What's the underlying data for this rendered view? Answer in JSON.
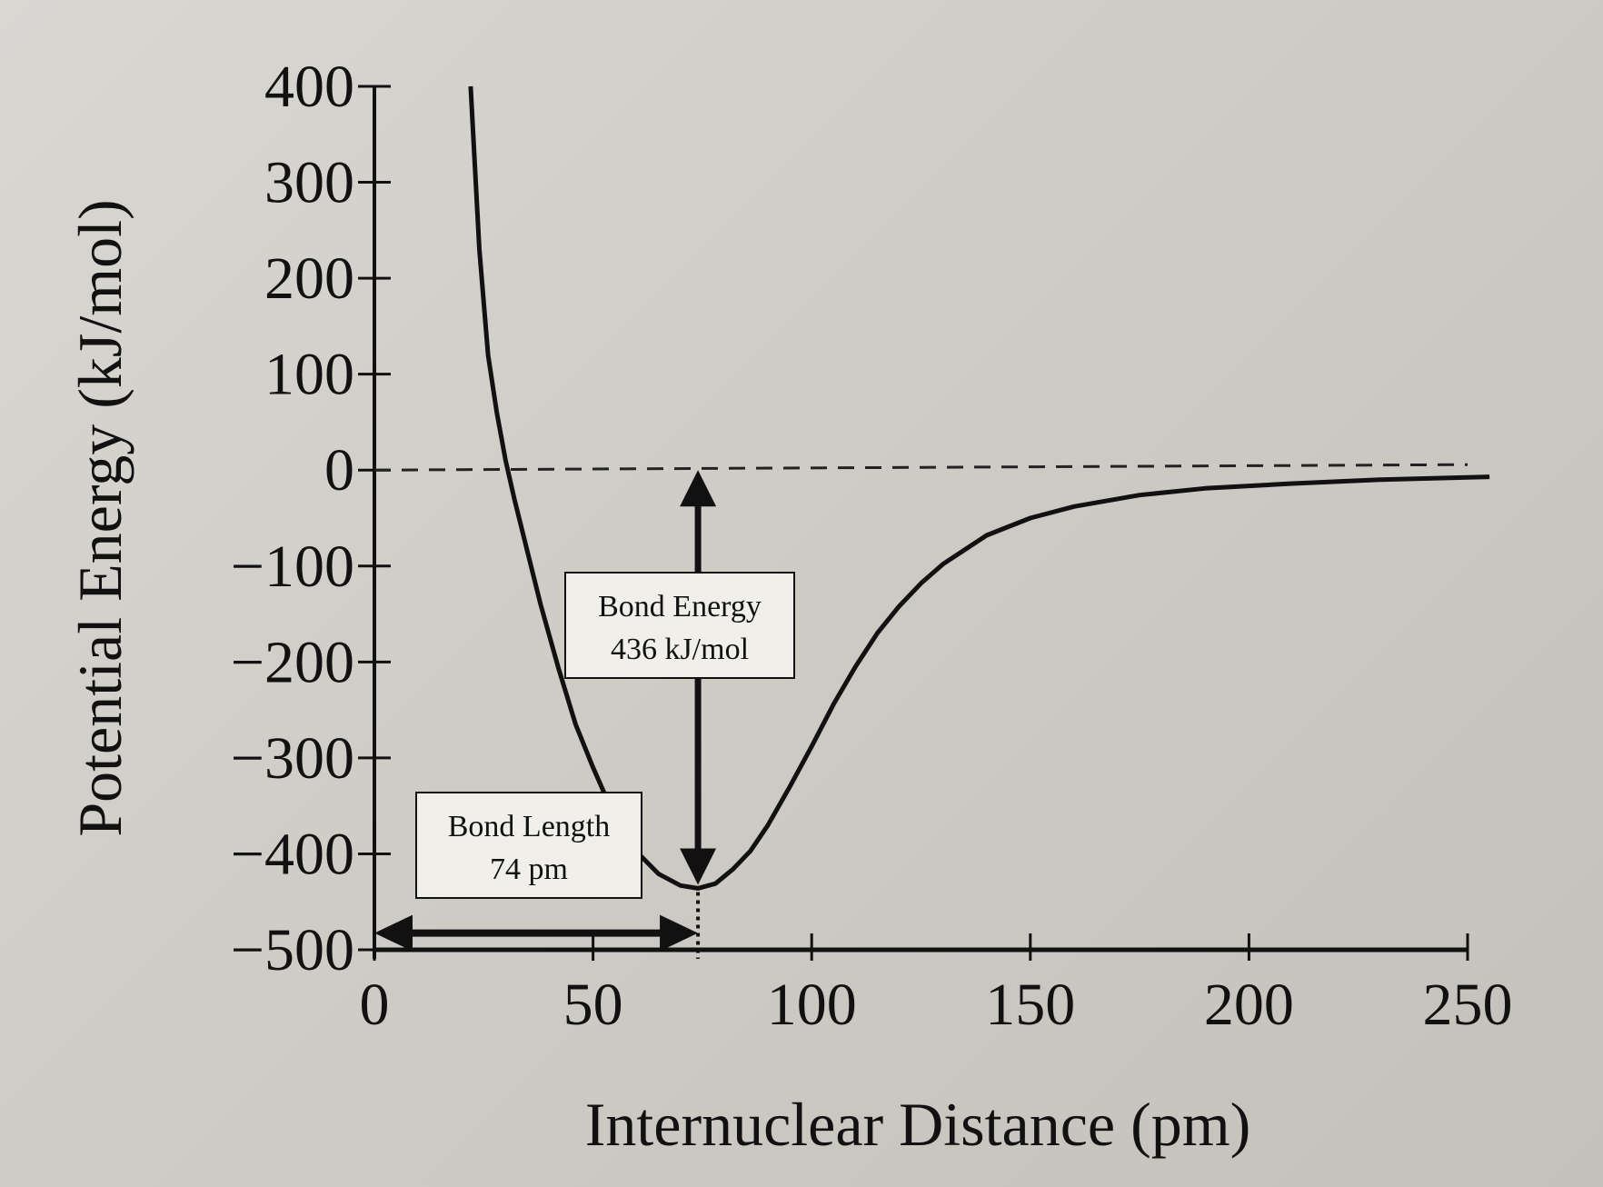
{
  "chart_data": {
    "type": "line",
    "title": "",
    "xlabel": "Internuclear Distance (pm)",
    "ylabel": "Potential Energy (kJ/mol)",
    "xlim": [
      0,
      250
    ],
    "ylim": [
      -500,
      400
    ],
    "x_ticks": [
      0,
      50,
      100,
      150,
      200,
      250
    ],
    "x_tick_labels": [
      "0",
      "50",
      "100",
      "150",
      "200",
      "250"
    ],
    "y_ticks": [
      400,
      300,
      200,
      100,
      0,
      -100,
      -200,
      -300,
      -400,
      -500
    ],
    "y_tick_labels": [
      "400",
      "300",
      "200",
      "100",
      "0",
      "−100",
      "−200",
      "−300",
      "−400",
      "−500"
    ],
    "grid": false,
    "series": [
      {
        "x": [
          22,
          24,
          26,
          28,
          30,
          32,
          35,
          38,
          42,
          46,
          50,
          55,
          60,
          65,
          70,
          74,
          78,
          82,
          86,
          90,
          95,
          100,
          105,
          110,
          115,
          120,
          125,
          130,
          140,
          150,
          160,
          175,
          190,
          210,
          230,
          255
        ],
        "y": [
          400,
          230,
          120,
          60,
          10,
          -30,
          -85,
          -140,
          -205,
          -265,
          -310,
          -362,
          -398,
          -421,
          -433,
          -436,
          -431,
          -416,
          -397,
          -370,
          -330,
          -288,
          -244,
          -205,
          -170,
          -142,
          -118,
          -98,
          -68,
          -50,
          -38,
          -26,
          -19,
          -14,
          -10,
          -7
        ]
      }
    ],
    "reference_line": {
      "y": 0
    },
    "minimum_marker": {
      "x": 74
    },
    "annotations": {
      "bond_energy": {
        "line1": "Bond Energy",
        "line2": "436 kJ/mol",
        "x": 74,
        "y_from": -436,
        "y_to": 0
      },
      "bond_length": {
        "line1": "Bond Length",
        "line2": "74 pm",
        "x_from": 0,
        "x_to": 74,
        "y": -475
      }
    }
  }
}
